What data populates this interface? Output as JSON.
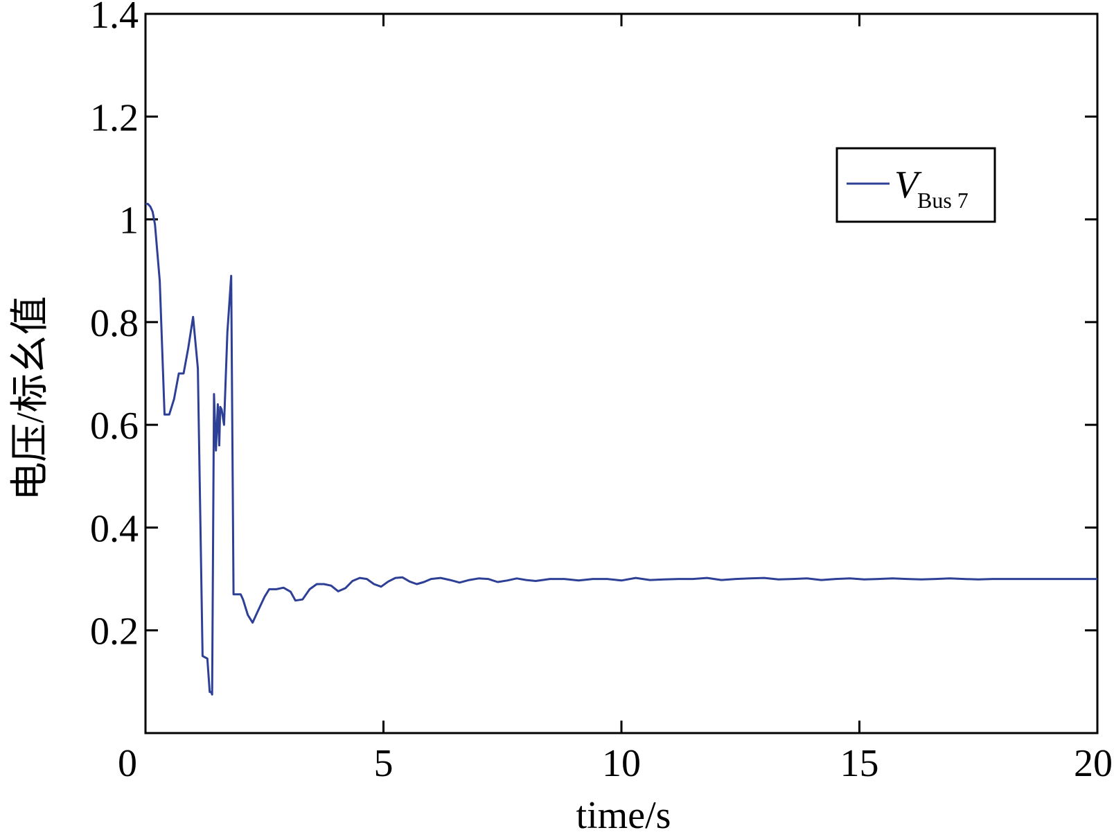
{
  "chart_data": {
    "type": "line",
    "title": "",
    "xlabel": "time/s",
    "ylabel": "电压/标幺值",
    "xlim": [
      0,
      20
    ],
    "ylim": [
      0,
      1.4
    ],
    "xticks": [
      0,
      5,
      10,
      15,
      20
    ],
    "xtick_labels": [
      "0",
      "5",
      "10",
      "15",
      "20"
    ],
    "yticks": [
      0.2,
      0.4,
      0.6,
      0.8,
      1.0,
      1.2,
      1.4
    ],
    "ytick_labels": [
      "0.2",
      "0.4",
      "0.6",
      "0.8",
      "1",
      "1.2",
      "1.4"
    ],
    "grid": false,
    "legend_position": "top-right",
    "legend": {
      "symbol": "V",
      "subscript": "Bus 7"
    },
    "series": [
      {
        "name": "V Bus 7",
        "color": "#2e3f96",
        "x": [
          0,
          0.05,
          0.1,
          0.15,
          0.2,
          0.3,
          0.4,
          0.5,
          0.6,
          0.7,
          0.75,
          0.8,
          0.9,
          1.0,
          1.1,
          1.2,
          1.3,
          1.35,
          1.36,
          1.37,
          1.38,
          1.4,
          1.44,
          1.48,
          1.52,
          1.55,
          1.57,
          1.6,
          1.65,
          1.72,
          1.8,
          1.85,
          1.92,
          1.97,
          2.0,
          2.05,
          2.15,
          2.25,
          2.35,
          2.5,
          2.6,
          2.75,
          2.9,
          3.05,
          3.15,
          3.3,
          3.45,
          3.6,
          3.75,
          3.9,
          4.05,
          4.2,
          4.35,
          4.5,
          4.65,
          4.8,
          4.95,
          5.1,
          5.25,
          5.4,
          5.55,
          5.7,
          5.85,
          6.0,
          6.2,
          6.4,
          6.6,
          6.8,
          7.0,
          7.2,
          7.4,
          7.6,
          7.8,
          8.0,
          8.2,
          8.5,
          8.8,
          9.1,
          9.4,
          9.7,
          10.0,
          10.3,
          10.6,
          10.9,
          11.2,
          11.5,
          11.8,
          12.1,
          12.4,
          12.7,
          13.0,
          13.3,
          13.6,
          13.9,
          14.2,
          14.5,
          14.8,
          15.1,
          15.4,
          15.7,
          16.0,
          16.3,
          16.6,
          16.9,
          17.2,
          17.5,
          17.8,
          18.5,
          19.0,
          19.5,
          20.0
        ],
        "y": [
          1.03,
          1.03,
          1.025,
          1.015,
          0.99,
          0.88,
          0.62,
          0.62,
          0.65,
          0.7,
          0.7,
          0.7,
          0.75,
          0.81,
          0.71,
          0.15,
          0.145,
          0.08,
          0.08,
          0.08,
          0.08,
          0.075,
          0.66,
          0.55,
          0.64,
          0.56,
          0.635,
          0.63,
          0.6,
          0.78,
          0.89,
          0.27,
          0.27,
          0.27,
          0.27,
          0.26,
          0.23,
          0.215,
          0.235,
          0.265,
          0.28,
          0.28,
          0.283,
          0.275,
          0.258,
          0.26,
          0.28,
          0.29,
          0.29,
          0.287,
          0.276,
          0.282,
          0.296,
          0.302,
          0.3,
          0.29,
          0.285,
          0.295,
          0.302,
          0.303,
          0.295,
          0.29,
          0.294,
          0.3,
          0.302,
          0.298,
          0.293,
          0.298,
          0.301,
          0.3,
          0.294,
          0.297,
          0.301,
          0.298,
          0.296,
          0.3,
          0.3,
          0.297,
          0.3,
          0.3,
          0.297,
          0.302,
          0.298,
          0.299,
          0.3,
          0.3,
          0.302,
          0.298,
          0.3,
          0.301,
          0.302,
          0.299,
          0.3,
          0.301,
          0.298,
          0.3,
          0.301,
          0.299,
          0.3,
          0.301,
          0.3,
          0.299,
          0.3,
          0.301,
          0.3,
          0.299,
          0.3,
          0.3,
          0.3,
          0.3,
          0.3
        ]
      }
    ]
  }
}
